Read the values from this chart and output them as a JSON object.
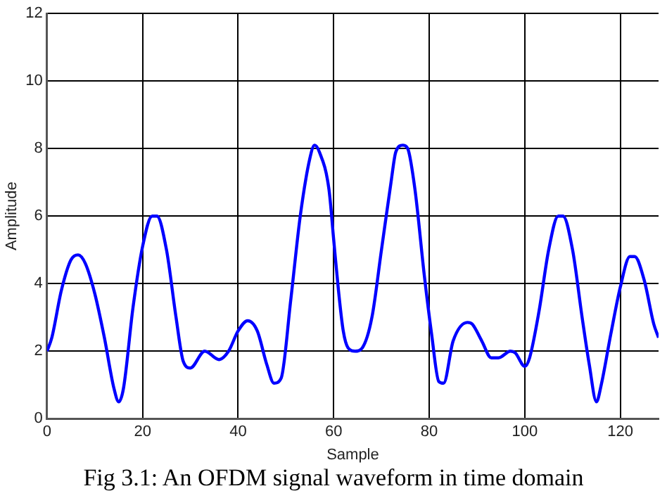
{
  "chart_data": {
    "type": "line",
    "xlabel": "Sample",
    "ylabel": "Amplitude",
    "annotations": [
      "Fig 3.1: An OFDM signal waveform in time domain"
    ],
    "xlim": [
      0,
      128
    ],
    "xticks": [
      0,
      20,
      40,
      60,
      80,
      100,
      120
    ],
    "ylim": [
      0,
      12
    ],
    "yticks": [
      0,
      2,
      4,
      6,
      8,
      10,
      12
    ],
    "grid": true,
    "legend": false,
    "marker": "none",
    "line_style": "solid",
    "series": [
      {
        "color": "#0000ff",
        "x": [
          0,
          1,
          3,
          5,
          6.5,
          8,
          10,
          12,
          14,
          15,
          16,
          18,
          20,
          22,
          23,
          25,
          27,
          28.5,
          30,
          33,
          36,
          38,
          40,
          42,
          44,
          46,
          47.5,
          49,
          51,
          53,
          55,
          56,
          57,
          59,
          60,
          61,
          62,
          63,
          64.5,
          66,
          68,
          70,
          72,
          73,
          74.5,
          75.5,
          77,
          79,
          80.5,
          82,
          83,
          85,
          88,
          89,
          91,
          93,
          94.5,
          97,
          98,
          100,
          101,
          103,
          105,
          107,
          108,
          110,
          112,
          113.5,
          115,
          116,
          118,
          120,
          122,
          123,
          125,
          127,
          128
        ],
        "values": [
          2.0,
          2.4,
          3.8,
          4.7,
          4.85,
          4.6,
          3.7,
          2.4,
          0.9,
          0.5,
          0.9,
          3.3,
          5.1,
          6.0,
          6.0,
          5.0,
          3.0,
          1.7,
          1.5,
          2.0,
          1.75,
          2.0,
          2.6,
          2.9,
          2.6,
          1.6,
          1.05,
          1.2,
          3.5,
          6.0,
          7.7,
          8.1,
          7.9,
          6.8,
          5.3,
          3.8,
          2.6,
          2.1,
          2.0,
          2.1,
          3.0,
          5.0,
          7.0,
          7.9,
          8.1,
          8.0,
          6.8,
          4.2,
          2.5,
          1.1,
          1.05,
          2.3,
          2.85,
          2.8,
          2.3,
          1.8,
          1.8,
          2.0,
          1.95,
          1.55,
          1.8,
          3.2,
          5.0,
          6.0,
          6.0,
          5.0,
          3.0,
          1.6,
          0.5,
          1.0,
          2.5,
          3.9,
          4.8,
          4.8,
          4.1,
          2.8,
          2.4
        ]
      }
    ]
  }
}
